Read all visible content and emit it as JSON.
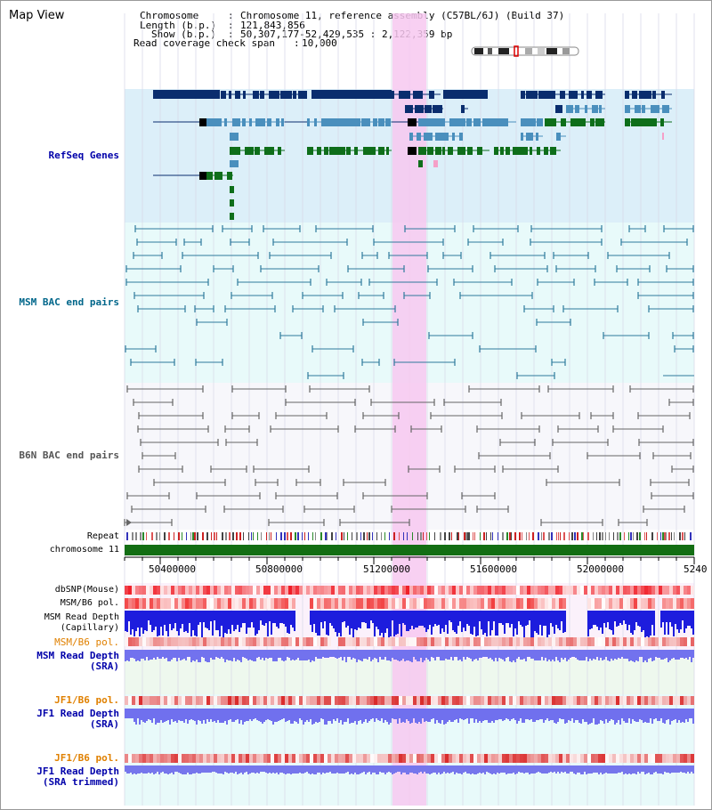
{
  "view": {
    "title": "Map View"
  },
  "info": {
    "chromosome_key": "Chromosome",
    "chromosome_val": "Chromosome 11, reference assembly (C57BL/6J) (Build 37)",
    "length_key": "Length (b.p.)",
    "length_val": "121,843,856",
    "show_key": "Show (b.p.)",
    "show_val": "50,307,177-52,429,535 : 2,122,359 bp",
    "coverage_key": "Read coverage check span",
    "coverage_val": "10,000"
  },
  "tracks": {
    "refseq": "RefSeq Genes",
    "msm_bac": "MSM BAC end pairs",
    "b6n_bac": "B6N BAC end pairs",
    "repeat": "Repeat",
    "chrom": "chromosome 11",
    "dbsnp": "dbSNP(Mouse)",
    "msm_b6_pol1": "MSM/B6 pol.",
    "msm_depth_cap_1": "MSM Read Depth",
    "msm_depth_cap_2": "(Capillary)",
    "msm_b6_pol2": "MSM/B6 pol.",
    "msm_depth_sra_1": "MSM Read Depth",
    "msm_depth_sra_2": "(SRA)",
    "jf1_b6_pol1": "JF1/B6 pol.",
    "jf1_depth_sra_1": "JF1 Read Depth",
    "jf1_depth_sra_2": "(SRA)",
    "jf1_b6_pol2": "JF1/B6 pol.",
    "jf1_depth_trim_1": "JF1 Read Depth",
    "jf1_depth_trim_2": "(SRA trimmed)"
  },
  "axis": {
    "ticks": [
      "50400000",
      "50800000",
      "51200000",
      "51600000",
      "52000000",
      "5240"
    ]
  },
  "colors": {
    "refseq_bg": "#dceff9",
    "msm_bg": "#e8fafa",
    "b6n_bg": "#f7f7fb",
    "highlight": "#f7c8f0",
    "refseq_dark": "#0a2d6e",
    "refseq_mid": "#4a8fbd",
    "refseq_green": "#0e6e1a",
    "msm_feature": "#2e7a9c",
    "b6n_feature": "#666666",
    "chrom_bar": "#136e13",
    "msm_label": "#00668a",
    "refseq_label": "#0000aa",
    "b6n_label": "#555555",
    "pol_label": "#e08000",
    "depth_label": "#0000aa"
  }
}
